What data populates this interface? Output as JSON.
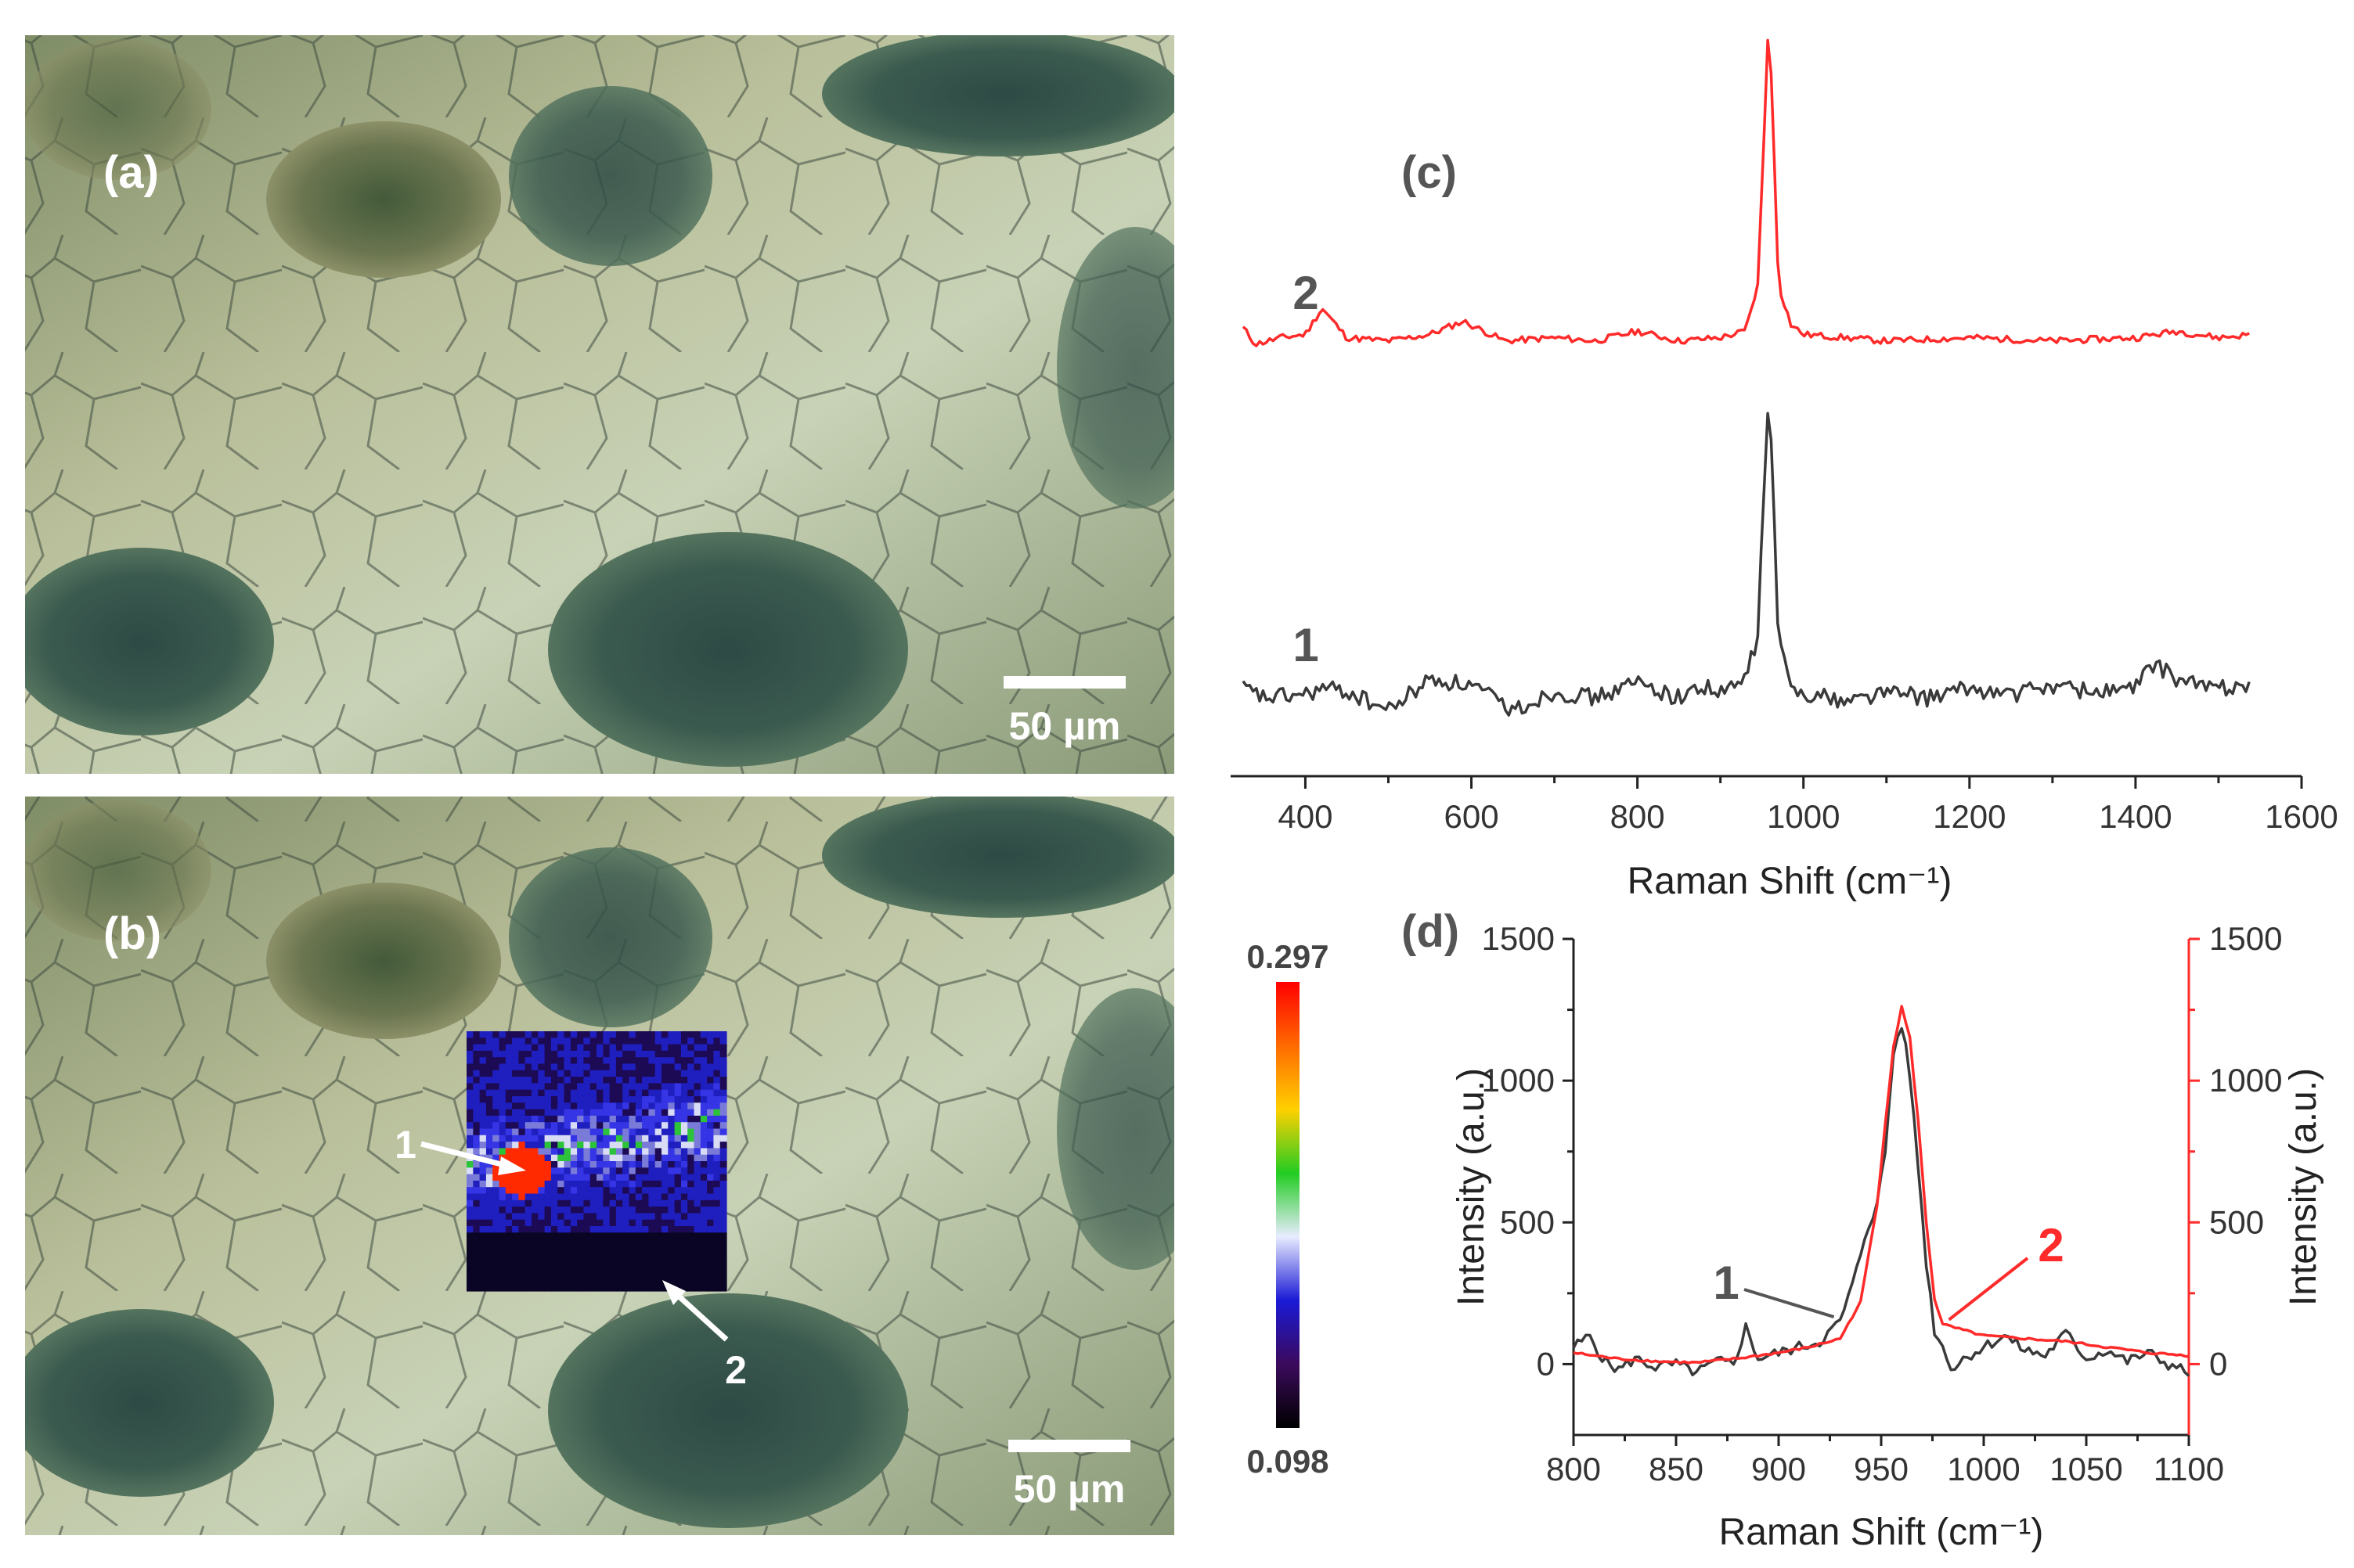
{
  "panels": {
    "a": {
      "letter": "(a)",
      "scale_bar": "50 µm"
    },
    "b": {
      "letter": "(b)",
      "scale_bar": "50 µm",
      "marker_1": "1",
      "marker_2": "2"
    },
    "c": {
      "letter": "(c)"
    },
    "d": {
      "letter": "(d)"
    }
  },
  "colorbar": {
    "max_label": "0.297",
    "min_label": "0.098",
    "stops": [
      "#000000",
      "#3b0a5c",
      "#1a1ad6",
      "#e8ecff",
      "#22cc22",
      "#ffd000",
      "#ff6a00",
      "#ff0000"
    ]
  },
  "colors": {
    "series_1": "#3a3a3a",
    "series_2": "#ff2a2a",
    "letter": "#555555",
    "label_1": "#555555"
  },
  "chart_data": [
    {
      "id": "c",
      "type": "line",
      "title": "",
      "xlabel": "Raman Shift (cm⁻¹)",
      "ylabel": "",
      "xlim": [
        310,
        1600
      ],
      "xticks": [
        400,
        600,
        800,
        1000,
        1200,
        1400,
        1600
      ],
      "y_axis_shown": false,
      "grid": false,
      "series": [
        {
          "name": "2",
          "color": "#ff2a2a",
          "x": [
            325,
            340,
            370,
            400,
            420,
            450,
            500,
            550,
            590,
            640,
            700,
            750,
            800,
            850,
            900,
            930,
            945,
            952,
            958,
            963,
            970,
            985,
            1000,
            1050,
            1100,
            1200,
            1300,
            1400,
            1450,
            1500,
            1540
          ],
          "y": [
            0.05,
            0.0,
            0.02,
            0.03,
            0.11,
            0.02,
            0.01,
            0.03,
            0.07,
            0.01,
            0.02,
            0.01,
            0.04,
            0.01,
            0.02,
            0.04,
            0.18,
            0.6,
            1.0,
            0.7,
            0.18,
            0.06,
            0.03,
            0.02,
            0.01,
            0.02,
            0.01,
            0.02,
            0.04,
            0.02,
            0.03
          ]
        },
        {
          "name": "1",
          "color": "#3a3a3a",
          "x": [
            325,
            350,
            400,
            420,
            450,
            500,
            550,
            600,
            650,
            700,
            750,
            800,
            850,
            880,
            900,
            930,
            945,
            952,
            958,
            963,
            970,
            985,
            1000,
            1050,
            1100,
            1150,
            1200,
            1250,
            1300,
            1350,
            1400,
            1420,
            1450,
            1480,
            1500,
            1540
          ],
          "y": [
            0.05,
            0.02,
            0.03,
            0.05,
            0.04,
            -0.02,
            0.08,
            0.06,
            -0.02,
            0.04,
            0.02,
            0.07,
            0.02,
            0.06,
            0.03,
            0.08,
            0.22,
            0.65,
            1.0,
            0.72,
            0.2,
            0.05,
            0.04,
            0.01,
            0.04,
            0.02,
            0.05,
            0.03,
            0.06,
            0.04,
            0.05,
            0.13,
            0.08,
            0.06,
            0.05,
            0.07
          ]
        }
      ]
    },
    {
      "id": "d",
      "type": "line",
      "title": "",
      "xlabel": "Raman Shift (cm⁻¹)",
      "ylabel_left": "Intensity (a.u.)",
      "ylabel_right": "Intensity (a.u.)",
      "xlim": [
        800,
        1100
      ],
      "ylim_left": [
        -250,
        1500
      ],
      "ylim_right": [
        -250,
        1500
      ],
      "xticks": [
        800,
        850,
        900,
        950,
        1000,
        1050,
        1100
      ],
      "yticks": [
        0,
        500,
        1000,
        1500
      ],
      "grid": false,
      "series": [
        {
          "name": "1",
          "axis": "left",
          "color": "#3a3a3a",
          "x": [
            800,
            808,
            815,
            822,
            830,
            840,
            850,
            860,
            870,
            878,
            884,
            890,
            900,
            910,
            920,
            930,
            937,
            943,
            948,
            952,
            956,
            960,
            964,
            968,
            972,
            976,
            980,
            985,
            990,
            1000,
            1010,
            1020,
            1030,
            1040,
            1050,
            1060,
            1070,
            1080,
            1090,
            1100
          ],
          "y": [
            60,
            100,
            10,
            -20,
            20,
            -10,
            0,
            -30,
            10,
            0,
            130,
            20,
            40,
            60,
            80,
            150,
            300,
            480,
            560,
            750,
            1100,
            1200,
            1020,
            700,
            360,
            120,
            60,
            -20,
            20,
            60,
            100,
            50,
            30,
            110,
            20,
            50,
            10,
            40,
            0,
            -30
          ]
        },
        {
          "name": "2",
          "axis": "right",
          "color": "#ff2a2a",
          "x": [
            800,
            820,
            840,
            860,
            880,
            900,
            915,
            930,
            940,
            948,
            952,
            956,
            960,
            964,
            968,
            972,
            976,
            980,
            990,
            1000,
            1020,
            1040,
            1060,
            1080,
            1100
          ],
          "y": [
            40,
            20,
            10,
            5,
            20,
            40,
            60,
            90,
            220,
            560,
            850,
            1120,
            1260,
            1150,
            860,
            500,
            230,
            140,
            120,
            100,
            90,
            80,
            60,
            40,
            30
          ]
        }
      ],
      "annotations": [
        {
          "text": "1",
          "color": "#555555",
          "points_to": [
            930,
            150
          ]
        },
        {
          "text": "2",
          "color": "#ff2a2a",
          "points_to": [
            980,
            140
          ]
        }
      ]
    }
  ]
}
